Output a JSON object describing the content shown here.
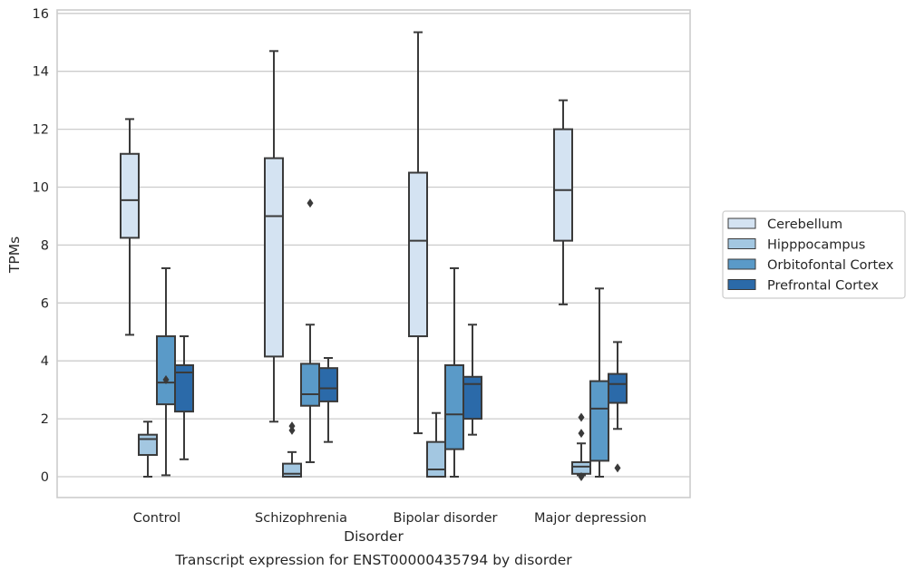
{
  "chart_data": {
    "type": "box",
    "caption": "Transcript expression for ENST00000435794 by disorder",
    "xlabel": "Disorder",
    "ylabel": "TPMs",
    "ylim": [
      -0.7,
      16.15
    ],
    "yticks": [
      0,
      2,
      4,
      6,
      8,
      10,
      12,
      14,
      16
    ],
    "grid": "horizontal",
    "legend_position": "right",
    "categories": [
      "Control",
      "Schizophrenia",
      "Bipolar disorder",
      "Major depression"
    ],
    "series": [
      {
        "name": "Cerebellum",
        "color": "#d4e3f2",
        "boxes": [
          {
            "whisker_low": 4.9,
            "q1": 8.25,
            "median": 9.55,
            "q3": 11.15,
            "whisker_high": 12.35,
            "outliers": []
          },
          {
            "whisker_low": 1.9,
            "q1": 4.15,
            "median": 9.0,
            "q3": 11.0,
            "whisker_high": 14.7,
            "outliers": []
          },
          {
            "whisker_low": 1.5,
            "q1": 4.85,
            "median": 8.15,
            "q3": 10.5,
            "whisker_high": 15.35,
            "outliers": []
          },
          {
            "whisker_low": 5.95,
            "q1": 8.15,
            "median": 9.9,
            "q3": 12.0,
            "whisker_high": 13.0,
            "outliers": []
          }
        ]
      },
      {
        "name": "Hipppocampus",
        "color": "#a3c7e1",
        "boxes": [
          {
            "whisker_low": 0.0,
            "q1": 0.75,
            "median": 1.3,
            "q3": 1.45,
            "whisker_high": 1.9,
            "outliers": []
          },
          {
            "whisker_low": 0.0,
            "q1": 0.0,
            "median": 0.1,
            "q3": 0.45,
            "whisker_high": 0.85,
            "outliers": [
              1.6,
              1.75
            ]
          },
          {
            "whisker_low": 0.0,
            "q1": 0.0,
            "median": 0.25,
            "q3": 1.2,
            "whisker_high": 2.2,
            "outliers": []
          },
          {
            "whisker_low": 0.05,
            "q1": 0.1,
            "median": 0.35,
            "q3": 0.5,
            "whisker_high": 1.15,
            "outliers": [
              0.0,
              1.5,
              2.05
            ]
          }
        ]
      },
      {
        "name": "Orbitofontal Cortex",
        "color": "#5a9ac8",
        "boxes": [
          {
            "whisker_low": 0.05,
            "q1": 2.5,
            "median": 3.25,
            "q3": 4.85,
            "whisker_high": 7.2,
            "outliers": [
              3.35
            ]
          },
          {
            "whisker_low": 0.5,
            "q1": 2.45,
            "median": 2.85,
            "q3": 3.9,
            "whisker_high": 5.25,
            "outliers": [
              9.45
            ]
          },
          {
            "whisker_low": 0.0,
            "q1": 0.95,
            "median": 2.15,
            "q3": 3.85,
            "whisker_high": 7.2,
            "outliers": []
          },
          {
            "whisker_low": 0.0,
            "q1": 0.55,
            "median": 2.35,
            "q3": 3.3,
            "whisker_high": 6.5,
            "outliers": []
          }
        ]
      },
      {
        "name": "Prefrontal Cortex",
        "color": "#2b6aa9",
        "boxes": [
          {
            "whisker_low": 0.6,
            "q1": 2.25,
            "median": 3.6,
            "q3": 3.85,
            "whisker_high": 4.85,
            "outliers": []
          },
          {
            "whisker_low": 1.2,
            "q1": 2.6,
            "median": 3.05,
            "q3": 3.75,
            "whisker_high": 4.1,
            "outliers": []
          },
          {
            "whisker_low": 1.45,
            "q1": 2.0,
            "median": 3.2,
            "q3": 3.45,
            "whisker_high": 5.25,
            "outliers": []
          },
          {
            "whisker_low": 1.65,
            "q1": 2.55,
            "median": 3.2,
            "q3": 3.55,
            "whisker_high": 4.65,
            "outliers": [
              0.3
            ]
          }
        ]
      }
    ]
  }
}
